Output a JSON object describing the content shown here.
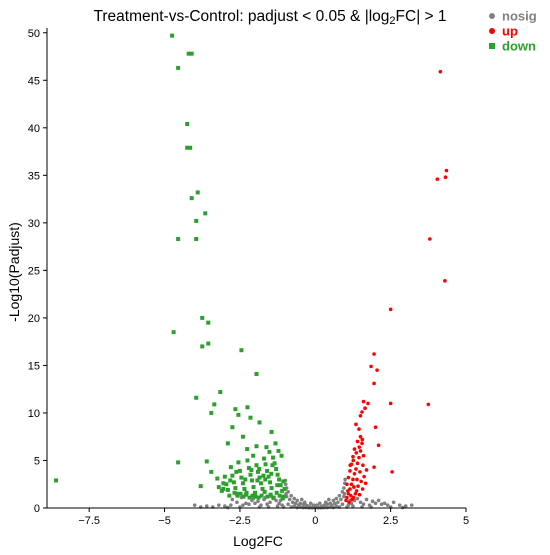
{
  "chart_data": {
    "type": "scatter",
    "title": "Treatment-vs-Control: padjust < 0.05 & |log2FC| > 1",
    "title_parts": [
      "Treatment-vs-Control: padjust < 0.05 & |log",
      "2",
      "FC| > 1"
    ],
    "xlabel": "Log2FC",
    "ylabel": "-Log10(Padjust)",
    "xlim": [
      -8.9,
      5
    ],
    "ylim": [
      0,
      50.5
    ],
    "x_ticks": [
      -7.5,
      -5,
      -2.5,
      0,
      2.5,
      5
    ],
    "x_tick_labels": [
      "−7.5",
      "−5",
      "−2.5",
      "0",
      "2.5",
      "5"
    ],
    "y_ticks": [
      0,
      5,
      10,
      15,
      20,
      25,
      30,
      35,
      40,
      45,
      50
    ],
    "y_tick_labels": [
      "0",
      "5",
      "10",
      "15",
      "20",
      "25",
      "30",
      "35",
      "40",
      "45",
      "50"
    ],
    "grid": false,
    "legend_position": "top-right",
    "series": [
      {
        "name": "nosig",
        "color": "#808080",
        "marker": "circle",
        "points": [
          [
            0,
            0.05
          ],
          [
            0.1,
            0.1
          ],
          [
            -0.1,
            0.1
          ],
          [
            0.2,
            0.15
          ],
          [
            -0.2,
            0.15
          ],
          [
            0.3,
            0.3
          ],
          [
            -0.3,
            0.3
          ],
          [
            0.4,
            0.4
          ],
          [
            -0.4,
            0.4
          ],
          [
            0.5,
            0.5
          ],
          [
            -0.5,
            0.5
          ],
          [
            0.6,
            0.8
          ],
          [
            -0.6,
            0.8
          ],
          [
            0.7,
            1.0
          ],
          [
            -0.7,
            1.0
          ],
          [
            0.8,
            1.3
          ],
          [
            -0.8,
            1.3
          ],
          [
            0.9,
            1.7
          ],
          [
            -0.9,
            1.7
          ],
          [
            0.95,
            2.1
          ],
          [
            -0.95,
            2.1
          ],
          [
            0.98,
            2.6
          ],
          [
            -0.98,
            2.5
          ],
          [
            0.05,
            0.3
          ],
          [
            -0.05,
            0.3
          ],
          [
            0.15,
            0.5
          ],
          [
            -0.15,
            0.5
          ],
          [
            0.25,
            0.2
          ],
          [
            -0.25,
            0.2
          ],
          [
            0.35,
            0.6
          ],
          [
            -0.35,
            0.6
          ],
          [
            0.45,
            0.9
          ],
          [
            -0.45,
            0.9
          ],
          [
            0.55,
            0.3
          ],
          [
            -0.55,
            0.3
          ],
          [
            0.65,
            0.5
          ],
          [
            -0.65,
            0.5
          ],
          [
            0.75,
            0.6
          ],
          [
            -0.75,
            0.6
          ],
          [
            0.85,
            0.9
          ],
          [
            -0.85,
            0.9
          ],
          [
            0.9,
            0.4
          ],
          [
            -0.9,
            0.4
          ],
          [
            0.95,
            1.2
          ],
          [
            -0.95,
            1.2
          ],
          [
            0.7,
            0.2
          ],
          [
            -0.7,
            0.2
          ],
          [
            0.8,
            0.1
          ],
          [
            -0.8,
            0.1
          ],
          [
            0.6,
            0.05
          ],
          [
            -0.6,
            0.05
          ],
          [
            0.5,
            0.1
          ],
          [
            -0.5,
            0.1
          ],
          [
            0.4,
            0.05
          ],
          [
            -0.4,
            0.05
          ],
          [
            0.3,
            0.05
          ],
          [
            -0.3,
            0.05
          ],
          [
            0.2,
            0.02
          ],
          [
            -0.2,
            0.02
          ],
          [
            0.1,
            0.02
          ],
          [
            -0.1,
            0.02
          ],
          [
            0.99,
            3.0
          ],
          [
            -0.99,
            2.9
          ],
          [
            0.97,
            1.5
          ],
          [
            -0.97,
            1.5
          ],
          [
            1.1,
            0.3
          ],
          [
            1.2,
            0.5
          ],
          [
            1.3,
            0.8
          ],
          [
            1.5,
            0.6
          ],
          [
            1.6,
            0.4
          ],
          [
            1.8,
            0.3
          ],
          [
            2.0,
            0.5
          ],
          [
            2.2,
            0.4
          ],
          [
            2.4,
            0.3
          ],
          [
            2.6,
            0.6
          ],
          [
            2.8,
            0.3
          ],
          [
            3.0,
            0.2
          ],
          [
            3.2,
            0.3
          ],
          [
            1.4,
            1.0
          ],
          [
            1.7,
            0.9
          ],
          [
            1.9,
            0.7
          ],
          [
            2.1,
            0.8
          ],
          [
            2.3,
            0.5
          ],
          [
            1.25,
            0.2
          ],
          [
            1.55,
            0.1
          ],
          [
            1.85,
            0.1
          ],
          [
            2.5,
            0.1
          ],
          [
            2.9,
            0.05
          ],
          [
            1.05,
            0.1
          ],
          [
            1.15,
            0.8
          ],
          [
            -1.1,
            0.3
          ],
          [
            -1.2,
            0.5
          ],
          [
            -1.3,
            0.8
          ],
          [
            -1.5,
            0.6
          ],
          [
            -1.6,
            0.4
          ],
          [
            -1.8,
            0.3
          ],
          [
            -2.0,
            0.5
          ],
          [
            -2.2,
            0.4
          ],
          [
            -2.4,
            0.3
          ],
          [
            -2.6,
            0.6
          ],
          [
            -2.8,
            0.3
          ],
          [
            -3.0,
            0.2
          ],
          [
            -3.2,
            0.3
          ],
          [
            -1.4,
            1.0
          ],
          [
            -1.7,
            0.9
          ],
          [
            -1.9,
            0.7
          ],
          [
            -2.1,
            0.8
          ],
          [
            -2.3,
            0.5
          ],
          [
            -1.25,
            0.2
          ],
          [
            -1.55,
            0.1
          ],
          [
            -1.85,
            0.1
          ],
          [
            -2.5,
            0.1
          ],
          [
            -2.9,
            0.05
          ],
          [
            -3.4,
            0.1
          ],
          [
            -3.6,
            0.2
          ],
          [
            -3.8,
            0.1
          ],
          [
            -4.0,
            0.3
          ],
          [
            -1.05,
            0.1
          ],
          [
            -1.15,
            0.8
          ],
          [
            -1.45,
            1.2
          ],
          [
            -1.65,
            1.1
          ],
          [
            -2.05,
            1.0
          ],
          [
            -2.45,
            1.1
          ],
          [
            -2.75,
            0.9
          ]
        ]
      },
      {
        "name": "up",
        "color": "#ff0000",
        "marker": "circle",
        "points": [
          [
            4.15,
            45.9
          ],
          [
            4.35,
            35.5
          ],
          [
            4.32,
            34.8
          ],
          [
            4.05,
            34.6
          ],
          [
            3.8,
            28.3
          ],
          [
            4.3,
            23.9
          ],
          [
            2.5,
            20.9
          ],
          [
            1.95,
            16.2
          ],
          [
            1.85,
            14.9
          ],
          [
            2.05,
            14.5
          ],
          [
            1.95,
            13.1
          ],
          [
            1.6,
            11.2
          ],
          [
            1.75,
            11.0
          ],
          [
            2.5,
            11.0
          ],
          [
            3.75,
            10.9
          ],
          [
            1.65,
            10.5
          ],
          [
            1.55,
            10.1
          ],
          [
            1.5,
            9.7
          ],
          [
            2.0,
            8.5
          ],
          [
            2.1,
            6.6
          ],
          [
            2.55,
            3.8
          ],
          [
            1.95,
            4.3
          ],
          [
            1.05,
            1.1
          ],
          [
            1.1,
            1.5
          ],
          [
            1.15,
            2.0
          ],
          [
            1.2,
            2.5
          ],
          [
            1.25,
            3.0
          ],
          [
            1.3,
            3.6
          ],
          [
            1.35,
            4.1
          ],
          [
            1.4,
            4.7
          ],
          [
            1.45,
            5.3
          ],
          [
            1.5,
            6.0
          ],
          [
            1.55,
            6.8
          ],
          [
            1.5,
            7.5
          ],
          [
            1.45,
            8.3
          ],
          [
            1.35,
            8.8
          ],
          [
            1.4,
            7.0
          ],
          [
            1.3,
            6.2
          ],
          [
            1.25,
            5.4
          ],
          [
            1.2,
            4.6
          ],
          [
            1.15,
            3.9
          ],
          [
            1.1,
            3.2
          ],
          [
            1.05,
            2.5
          ],
          [
            1.08,
            1.8
          ],
          [
            1.18,
            1.3
          ],
          [
            1.28,
            2.2
          ],
          [
            1.38,
            3.0
          ],
          [
            1.48,
            3.8
          ],
          [
            1.58,
            4.5
          ],
          [
            1.6,
            5.5
          ],
          [
            1.42,
            2.3
          ],
          [
            1.33,
            1.5
          ],
          [
            1.22,
            0.9
          ],
          [
            1.12,
            0.6
          ],
          [
            1.52,
            2.8
          ],
          [
            1.62,
            3.3
          ],
          [
            1.7,
            4.0
          ],
          [
            1.02,
            0.8
          ],
          [
            1.27,
            1.1
          ],
          [
            1.37,
            1.8
          ],
          [
            1.47,
            1.4
          ],
          [
            1.57,
            2.0
          ],
          [
            1.67,
            2.6
          ],
          [
            1.16,
            4.5
          ],
          [
            1.26,
            5.0
          ],
          [
            1.36,
            5.8
          ],
          [
            1.46,
            6.4
          ],
          [
            1.56,
            7.2
          ]
        ]
      },
      {
        "name": "down",
        "color": "#2ca02c",
        "marker": "square",
        "points": [
          [
            -4.75,
            49.7
          ],
          [
            -4.2,
            47.8
          ],
          [
            -4.1,
            47.8
          ],
          [
            -4.55,
            46.3
          ],
          [
            -4.25,
            40.4
          ],
          [
            -4.25,
            37.9
          ],
          [
            -4.15,
            37.9
          ],
          [
            -3.9,
            33.2
          ],
          [
            -4.1,
            32.6
          ],
          [
            -3.65,
            31.0
          ],
          [
            -3.95,
            30.2
          ],
          [
            -4.55,
            28.3
          ],
          [
            -3.95,
            28.3
          ],
          [
            -3.75,
            20.0
          ],
          [
            -3.55,
            19.5
          ],
          [
            -4.7,
            18.5
          ],
          [
            -3.75,
            17.0
          ],
          [
            -3.55,
            17.3
          ],
          [
            -2.45,
            16.6
          ],
          [
            -1.95,
            14.1
          ],
          [
            -3.15,
            12.2
          ],
          [
            -3.95,
            11.6
          ],
          [
            -3.35,
            10.9
          ],
          [
            -2.65,
            10.4
          ],
          [
            -2.25,
            10.6
          ],
          [
            -3.45,
            10.0
          ],
          [
            -2.55,
            9.8
          ],
          [
            -2.15,
            9.5
          ],
          [
            -1.85,
            9.0
          ],
          [
            -2.75,
            8.5
          ],
          [
            -2.4,
            7.5
          ],
          [
            -1.45,
            8.0
          ],
          [
            -2.9,
            6.8
          ],
          [
            -1.95,
            6.5
          ],
          [
            -3.6,
            4.9
          ],
          [
            -4.55,
            4.8
          ],
          [
            -8.6,
            2.9
          ],
          [
            -3.25,
            3.1
          ],
          [
            -3.45,
            3.8
          ],
          [
            -3.8,
            2.3
          ],
          [
            -3.05,
            2.6
          ],
          [
            -1.05,
            1.2
          ],
          [
            -1.1,
            1.8
          ],
          [
            -1.15,
            2.4
          ],
          [
            -1.2,
            3.0
          ],
          [
            -1.25,
            3.5
          ],
          [
            -1.3,
            4.1
          ],
          [
            -1.35,
            4.7
          ],
          [
            -1.4,
            5.3
          ],
          [
            -1.45,
            2.1
          ],
          [
            -1.5,
            2.7
          ],
          [
            -1.55,
            3.3
          ],
          [
            -1.6,
            3.9
          ],
          [
            -1.65,
            4.6
          ],
          [
            -1.7,
            5.2
          ],
          [
            -1.75,
            2.0
          ],
          [
            -1.8,
            2.6
          ],
          [
            -1.85,
            3.2
          ],
          [
            -1.9,
            3.8
          ],
          [
            -1.95,
            4.5
          ],
          [
            -2.0,
            1.6
          ],
          [
            -2.05,
            2.2
          ],
          [
            -2.1,
            2.9
          ],
          [
            -2.15,
            3.5
          ],
          [
            -2.2,
            4.2
          ],
          [
            -2.25,
            5.0
          ],
          [
            -2.3,
            1.4
          ],
          [
            -2.35,
            2.0
          ],
          [
            -2.4,
            2.6
          ],
          [
            -2.45,
            3.2
          ],
          [
            -2.5,
            3.9
          ],
          [
            -2.55,
            4.8
          ],
          [
            -2.6,
            1.5
          ],
          [
            -2.65,
            2.1
          ],
          [
            -2.7,
            2.7
          ],
          [
            -2.75,
            3.4
          ],
          [
            -2.8,
            4.3
          ],
          [
            -2.85,
            1.3
          ],
          [
            -2.9,
            1.9
          ],
          [
            -2.95,
            2.5
          ],
          [
            -3.0,
            3.3
          ],
          [
            -3.1,
            1.8
          ],
          [
            -3.2,
            2.2
          ],
          [
            -1.08,
            1.0
          ],
          [
            -1.18,
            1.3
          ],
          [
            -1.28,
            1.6
          ],
          [
            -1.38,
            1.1
          ],
          [
            -1.48,
            1.4
          ],
          [
            -1.58,
            1.2
          ],
          [
            -1.68,
            1.7
          ],
          [
            -1.78,
            1.3
          ],
          [
            -1.88,
            1.1
          ],
          [
            -1.98,
            1.2
          ],
          [
            -2.08,
            1.3
          ],
          [
            -2.18,
            1.1
          ],
          [
            -2.28,
            1.6
          ],
          [
            -2.38,
            1.2
          ],
          [
            -2.48,
            1.5
          ],
          [
            -2.58,
            1.3
          ],
          [
            -2.68,
            1.6
          ],
          [
            -1.22,
            6.0
          ],
          [
            -1.32,
            6.8
          ],
          [
            -1.52,
            5.9
          ],
          [
            -1.62,
            6.4
          ],
          [
            -1.12,
            5.5
          ],
          [
            -1.42,
            4.5
          ],
          [
            -1.72,
            3.4
          ],
          [
            -1.92,
            2.9
          ],
          [
            -2.12,
            4.0
          ],
          [
            -2.32,
            3.0
          ],
          [
            -2.62,
            3.8
          ],
          [
            -2.82,
            2.9
          ],
          [
            -3.05,
            2.0
          ],
          [
            -1.02,
            2.0
          ],
          [
            -1.06,
            2.8
          ],
          [
            -1.26,
            2.4
          ],
          [
            -1.46,
            3.6
          ],
          [
            -1.66,
            3.0
          ],
          [
            -1.86,
            4.1
          ],
          [
            -2.06,
            5.5
          ],
          [
            -2.26,
            6.2
          ]
        ]
      }
    ]
  }
}
